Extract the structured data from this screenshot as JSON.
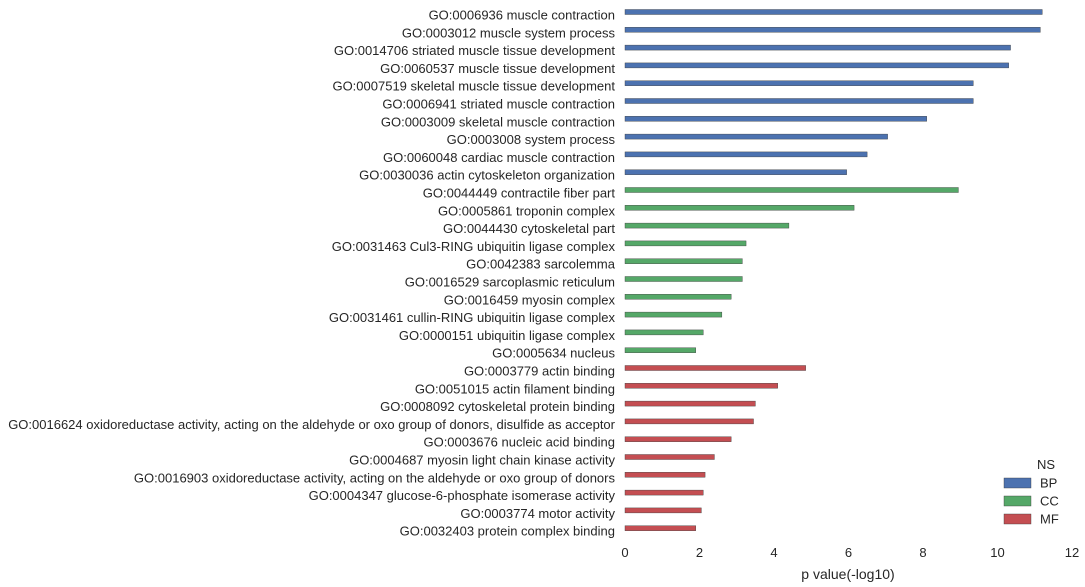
{
  "chart_data": {
    "type": "bar",
    "orientation": "horizontal",
    "xlabel": "p value(-log10)",
    "xlim": [
      0,
      12
    ],
    "xticks": [
      0,
      2,
      4,
      6,
      8,
      10,
      12
    ],
    "grid": false,
    "legend": {
      "title": "NS",
      "placement": "lower-right",
      "entries": [
        {
          "name": "BP",
          "color": "#4c72b0"
        },
        {
          "name": "CC",
          "color": "#55a868"
        },
        {
          "name": "MF",
          "color": "#c44e52"
        }
      ]
    },
    "categories": [
      "GO:0006936 muscle contraction",
      "GO:0003012 muscle system process",
      "GO:0014706 striated muscle tissue development",
      "GO:0060537 muscle tissue development",
      "GO:0007519 skeletal muscle tissue development",
      "GO:0006941 striated muscle contraction",
      "GO:0003009 skeletal muscle contraction",
      "GO:0003008 system process",
      "GO:0060048 cardiac muscle contraction",
      "GO:0030036 actin cytoskeleton organization",
      "GO:0044449 contractile fiber part",
      "GO:0005861 troponin complex",
      "GO:0044430 cytoskeletal part",
      "GO:0031463 Cul3-RING ubiquitin ligase complex",
      "GO:0042383 sarcolemma",
      "GO:0016529 sarcoplasmic reticulum",
      "GO:0016459 myosin complex",
      "GO:0031461 cullin-RING ubiquitin ligase complex",
      "GO:0000151 ubiquitin ligase complex",
      "GO:0005634 nucleus",
      "GO:0003779 actin binding",
      "GO:0051015 actin filament binding",
      "GO:0008092 cytoskeletal protein binding",
      "GO:0016624 oxidoreductase activity, acting on the aldehyde or oxo group of donors, disulfide as acceptor",
      "GO:0003676 nucleic acid binding",
      "GO:0004687 myosin light chain kinase activity",
      "GO:0016903 oxidoreductase activity, acting on the aldehyde or oxo group of donors",
      "GO:0004347 glucose-6-phosphate isomerase activity",
      "GO:0003774 motor activity",
      "GO:0032403 protein complex binding"
    ],
    "series": [
      {
        "name": "BP",
        "color": "#4c72b0",
        "values": [
          11.2,
          11.15,
          10.35,
          10.3,
          9.35,
          9.35,
          8.1,
          7.05,
          6.5,
          5.95,
          null,
          null,
          null,
          null,
          null,
          null,
          null,
          null,
          null,
          null,
          null,
          null,
          null,
          null,
          null,
          null,
          null,
          null,
          null,
          null
        ]
      },
      {
        "name": "CC",
        "color": "#55a868",
        "values": [
          null,
          null,
          null,
          null,
          null,
          null,
          null,
          null,
          null,
          null,
          8.95,
          6.15,
          4.4,
          3.25,
          3.15,
          3.15,
          2.85,
          2.6,
          2.1,
          1.9,
          null,
          null,
          null,
          null,
          null,
          null,
          null,
          null,
          null,
          null
        ]
      },
      {
        "name": "MF",
        "color": "#c44e52",
        "values": [
          null,
          null,
          null,
          null,
          null,
          null,
          null,
          null,
          null,
          null,
          null,
          null,
          null,
          null,
          null,
          null,
          null,
          null,
          null,
          null,
          4.85,
          4.1,
          3.5,
          3.45,
          2.85,
          2.4,
          2.15,
          2.1,
          2.05,
          1.9
        ]
      }
    ]
  }
}
